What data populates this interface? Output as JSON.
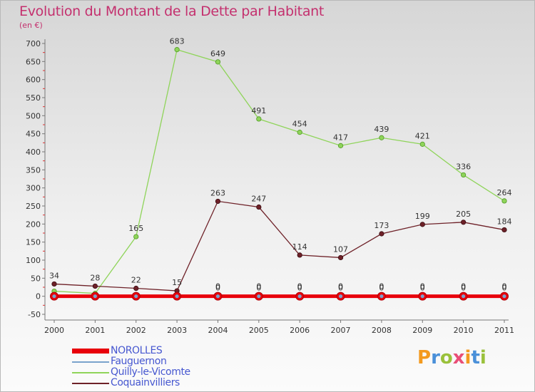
{
  "title": "Evolution du Montant de la Dette par Habitant",
  "subtitle": "(en €)",
  "logo_text": "Proxiti",
  "chart_data": {
    "type": "line",
    "title": "Evolution du Montant de la Dette par Habitant",
    "ylabel": "(en €)",
    "ylim": [
      -50,
      700
    ],
    "yticks": [
      -50,
      0,
      50,
      100,
      150,
      200,
      250,
      300,
      350,
      400,
      450,
      500,
      550,
      600,
      650,
      700
    ],
    "categories": [
      "2000",
      "2001",
      "2002",
      "2003",
      "2004",
      "2005",
      "2006",
      "2007",
      "2008",
      "2009",
      "2010",
      "2011"
    ],
    "grid": false,
    "legend_position": "bottom-left",
    "series": [
      {
        "name": "NOROLLES",
        "color": "#e8000b",
        "values": [
          0,
          0,
          0,
          0,
          0,
          0,
          0,
          0,
          0,
          0,
          0,
          0
        ]
      },
      {
        "name": "Fauguernon",
        "color": "#7aa3cc",
        "values": [
          0,
          0,
          0,
          0,
          0,
          0,
          0,
          0,
          0,
          0,
          0,
          0
        ]
      },
      {
        "name": "Quilly-le-Vicomte",
        "color": "#8fd45a",
        "values": [
          14,
          8,
          165,
          683,
          649,
          491,
          454,
          417,
          439,
          421,
          336,
          264
        ]
      },
      {
        "name": "Coquainvilliers",
        "color": "#6e2128",
        "values": [
          34,
          28,
          22,
          15,
          263,
          247,
          114,
          107,
          173,
          199,
          205,
          184
        ]
      }
    ]
  }
}
